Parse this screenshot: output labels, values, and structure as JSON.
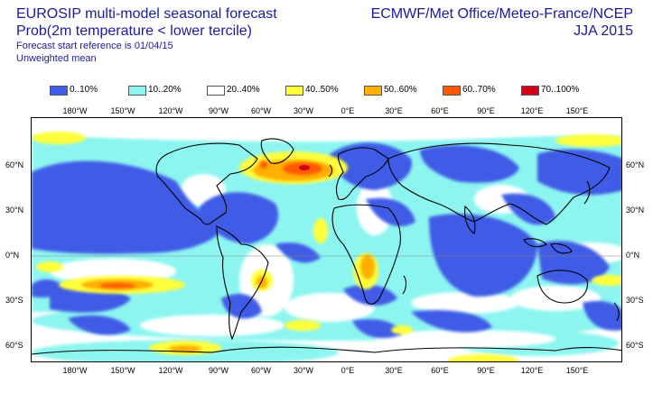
{
  "header": {
    "title": "EUROSIP multi-model seasonal forecast",
    "subtitle": "Prob(2m temperature < lower tercile)",
    "reference": "Forecast start reference is 01/04/15",
    "mean": "Unweighted mean",
    "centres": "ECMWF/Met Office/Meteo-France/NCEP",
    "season": "JJA 2015"
  },
  "legend": [
    {
      "label": "0..10%",
      "color": "#3f5ce6"
    },
    {
      "label": "10..20%",
      "color": "#8df5f0"
    },
    {
      "label": "20..40%",
      "color": "#ffffff"
    },
    {
      "label": "40..50%",
      "color": "#ffff3a"
    },
    {
      "label": "50..60%",
      "color": "#ffb000"
    },
    {
      "label": "60..70%",
      "color": "#ff5a00"
    },
    {
      "label": "70..100%",
      "color": "#d4001a"
    }
  ],
  "axes": {
    "lon_ticks": [
      "180°W",
      "150°W",
      "120°W",
      "90°W",
      "60°W",
      "30°W",
      "0°E",
      "30°E",
      "60°E",
      "90°E",
      "120°E",
      "150°E"
    ],
    "lat_ticks": [
      "60°N",
      "30°N",
      "0°N",
      "30°S",
      "60°S"
    ]
  }
}
